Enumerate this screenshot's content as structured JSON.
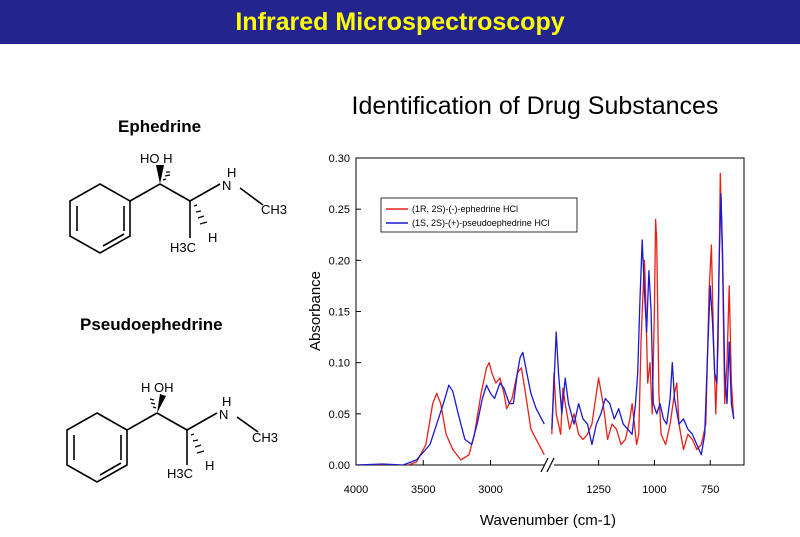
{
  "header": {
    "title": "Infrared Microspectroscopy"
  },
  "slide": {
    "subtitle": "Identification of Drug Substances"
  },
  "structures": [
    {
      "name": "Ephedrine",
      "labels": {
        "top": "HO H",
        "nh": "N",
        "nh_h": "H",
        "ch3": "CH3",
        "h3c": "H3C",
        "h": "H"
      }
    },
    {
      "name": "Pseudoephedrine",
      "labels": {
        "top": "H OH",
        "nh": "N",
        "nh_h": "H",
        "ch3": "CH3",
        "h3c": "H3C",
        "h": "H"
      }
    }
  ],
  "chart_data": {
    "type": "line",
    "xlabel": "Wavenumber (cm-1)",
    "ylabel": "Absorbance",
    "ylim": [
      0.0,
      0.3
    ],
    "xaxis_break": [
      2600,
      1450
    ],
    "yticks": [
      "0.00",
      "0.05",
      "0.10",
      "0.15",
      "0.20",
      "0.25",
      "0.30"
    ],
    "xticks": [
      "4000",
      "3500",
      "3000",
      "1250",
      "1000",
      "750"
    ],
    "legend": {
      "placement": "top-left-inside"
    },
    "colors": {
      "series1": "#e8201a",
      "series2": "#1a1ad0"
    },
    "series": [
      {
        "name": "(1R, 2S)-(-)-ephedrine HCl",
        "color": "#e8201a",
        "segments": [
          [
            [
              4000,
              0.0
            ],
            [
              3800,
              0.0
            ],
            [
              3650,
              -0.002
            ],
            [
              3550,
              0.003
            ],
            [
              3480,
              0.02
            ],
            [
              3430,
              0.06
            ],
            [
              3400,
              0.07
            ],
            [
              3370,
              0.06
            ],
            [
              3330,
              0.03
            ],
            [
              3280,
              0.015
            ],
            [
              3220,
              0.005
            ],
            [
              3160,
              0.01
            ],
            [
              3120,
              0.03
            ],
            [
              3070,
              0.07
            ],
            [
              3030,
              0.095
            ],
            [
              3010,
              0.1
            ],
            [
              2990,
              0.09
            ],
            [
              2960,
              0.08
            ],
            [
              2930,
              0.085
            ],
            [
              2900,
              0.07
            ],
            [
              2880,
              0.055
            ],
            [
              2840,
              0.065
            ],
            [
              2800,
              0.09
            ],
            [
              2770,
              0.095
            ],
            [
              2740,
              0.07
            ],
            [
              2700,
              0.035
            ],
            [
              2660,
              0.025
            ],
            [
              2620,
              0.015
            ],
            [
              2600,
              0.01
            ]
          ],
          [
            [
              1460,
              0.03
            ],
            [
              1450,
              0.09
            ],
            [
              1440,
              0.05
            ],
            [
              1420,
              0.03
            ],
            [
              1410,
              0.075
            ],
            [
              1400,
              0.06
            ],
            [
              1380,
              0.035
            ],
            [
              1360,
              0.05
            ],
            [
              1340,
              0.03
            ],
            [
              1320,
              0.025
            ],
            [
              1300,
              0.03
            ],
            [
              1280,
              0.04
            ],
            [
              1250,
              0.085
            ],
            [
              1230,
              0.06
            ],
            [
              1210,
              0.025
            ],
            [
              1190,
              0.04
            ],
            [
              1170,
              0.035
            ],
            [
              1150,
              0.02
            ],
            [
              1130,
              0.025
            ],
            [
              1110,
              0.045
            ],
            [
              1100,
              0.06
            ],
            [
              1090,
              0.04
            ],
            [
              1080,
              0.02
            ],
            [
              1070,
              0.03
            ],
            [
              1060,
              0.12
            ],
            [
              1050,
              0.175
            ],
            [
              1045,
              0.2
            ],
            [
              1040,
              0.17
            ],
            [
              1030,
              0.08
            ],
            [
              1020,
              0.1
            ],
            [
              1010,
              0.05
            ],
            [
              1000,
              0.15
            ],
            [
              995,
              0.24
            ],
            [
              990,
              0.22
            ],
            [
              980,
              0.07
            ],
            [
              970,
              0.03
            ],
            [
              950,
              0.02
            ],
            [
              930,
              0.04
            ],
            [
              910,
              0.07
            ],
            [
              900,
              0.08
            ],
            [
              890,
              0.04
            ],
            [
              870,
              0.015
            ],
            [
              850,
              0.03
            ],
            [
              830,
              0.025
            ],
            [
              810,
              0.015
            ],
            [
              790,
              0.02
            ],
            [
              770,
              0.04
            ],
            [
              755,
              0.17
            ],
            [
              745,
              0.215
            ],
            [
              735,
              0.12
            ],
            [
              725,
              0.05
            ],
            [
              715,
              0.12
            ],
            [
              705,
              0.285
            ],
            [
              695,
              0.2
            ],
            [
              685,
              0.06
            ],
            [
              675,
              0.1
            ],
            [
              665,
              0.175
            ],
            [
              655,
              0.08
            ],
            [
              645,
              0.045
            ]
          ]
        ]
      },
      {
        "name": "(1S, 2S)-(+)-pseudoephedrine HCl",
        "color": "#1a1ad0",
        "segments": [
          [
            [
              4000,
              0.0
            ],
            [
              3800,
              0.001
            ],
            [
              3650,
              0.0
            ],
            [
              3550,
              0.005
            ],
            [
              3450,
              0.02
            ],
            [
              3400,
              0.04
            ],
            [
              3350,
              0.06
            ],
            [
              3310,
              0.078
            ],
            [
              3280,
              0.072
            ],
            [
              3240,
              0.05
            ],
            [
              3190,
              0.025
            ],
            [
              3140,
              0.02
            ],
            [
              3100,
              0.04
            ],
            [
              3060,
              0.065
            ],
            [
              3030,
              0.078
            ],
            [
              3000,
              0.07
            ],
            [
              2970,
              0.065
            ],
            [
              2930,
              0.08
            ],
            [
              2900,
              0.075
            ],
            [
              2860,
              0.06
            ],
            [
              2830,
              0.06
            ],
            [
              2800,
              0.09
            ],
            [
              2780,
              0.105
            ],
            [
              2760,
              0.11
            ],
            [
              2730,
              0.09
            ],
            [
              2700,
              0.07
            ],
            [
              2660,
              0.055
            ],
            [
              2620,
              0.045
            ],
            [
              2600,
              0.04
            ]
          ],
          [
            [
              1460,
              0.035
            ],
            [
              1450,
              0.08
            ],
            [
              1440,
              0.13
            ],
            [
              1430,
              0.09
            ],
            [
              1415,
              0.05
            ],
            [
              1400,
              0.085
            ],
            [
              1385,
              0.06
            ],
            [
              1360,
              0.04
            ],
            [
              1340,
              0.06
            ],
            [
              1320,
              0.045
            ],
            [
              1300,
              0.04
            ],
            [
              1280,
              0.02
            ],
            [
              1260,
              0.04
            ],
            [
              1240,
              0.05
            ],
            [
              1220,
              0.065
            ],
            [
              1200,
              0.06
            ],
            [
              1180,
              0.045
            ],
            [
              1160,
              0.055
            ],
            [
              1140,
              0.04
            ],
            [
              1120,
              0.035
            ],
            [
              1100,
              0.03
            ],
            [
              1085,
              0.06
            ],
            [
              1075,
              0.09
            ],
            [
              1065,
              0.16
            ],
            [
              1055,
              0.22
            ],
            [
              1045,
              0.17
            ],
            [
              1035,
              0.13
            ],
            [
              1025,
              0.19
            ],
            [
              1015,
              0.15
            ],
            [
              1005,
              0.06
            ],
            [
              990,
              0.05
            ],
            [
              975,
              0.06
            ],
            [
              960,
              0.045
            ],
            [
              945,
              0.04
            ],
            [
              930,
              0.065
            ],
            [
              920,
              0.1
            ],
            [
              910,
              0.065
            ],
            [
              890,
              0.04
            ],
            [
              870,
              0.045
            ],
            [
              850,
              0.035
            ],
            [
              830,
              0.03
            ],
            [
              810,
              0.02
            ],
            [
              790,
              0.01
            ],
            [
              775,
              0.03
            ],
            [
              760,
              0.12
            ],
            [
              750,
              0.175
            ],
            [
              740,
              0.14
            ],
            [
              730,
              0.09
            ],
            [
              720,
              0.08
            ],
            [
              710,
              0.2
            ],
            [
              702,
              0.265
            ],
            [
              695,
              0.21
            ],
            [
              685,
              0.09
            ],
            [
              675,
              0.06
            ],
            [
              665,
              0.12
            ],
            [
              655,
              0.06
            ],
            [
              645,
              0.045
            ]
          ]
        ]
      }
    ]
  }
}
